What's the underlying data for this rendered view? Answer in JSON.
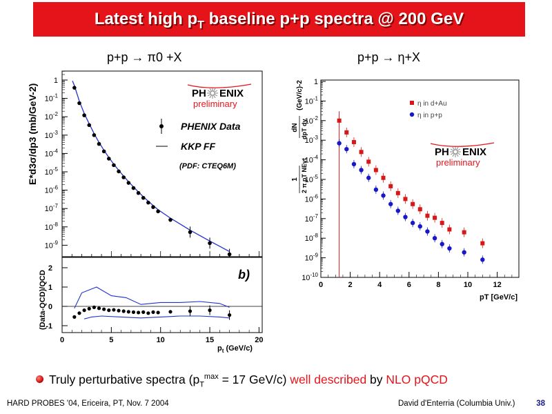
{
  "title": {
    "text": "Latest high p",
    "sub": "T",
    "rest": " baseline p+p spectra @ 200 GeV"
  },
  "panels": {
    "left_title": "p+p → π0 +X",
    "right_title": "p+p → η+X"
  },
  "logo": {
    "text_left": "PH",
    "text_right": "ENIX",
    "subtext": "preliminary"
  },
  "bullet": {
    "part1": "Truly perturbative spectra (p",
    "sub": "T",
    "sup": "max",
    "part2": " = 17 GeV/c)",
    "part3": " well described",
    "part4": " by ",
    "part5": "NLO pQCD"
  },
  "footer": {
    "left": "HARD PROBES '04, Ericeira, PT, Nov. 7 2004",
    "right": "David d'Enterria (Columbia Univ.)",
    "page": "38"
  },
  "colors": {
    "accent": "#e5141b",
    "theory": "#1f2fd0",
    "data": "#000000",
    "eta_dau": "#d81818",
    "eta_pp": "#1818c8"
  },
  "chart_data": [
    {
      "type": "scatter",
      "title": "p+p → π0 +X",
      "ylabel": "E*d3σ/dp3 (mb/GeV-2)",
      "yscale": "log",
      "ylim": [
        3e-10,
        3
      ],
      "xlim": [
        0,
        20
      ],
      "y_tick_labels": [
        "1",
        "10-1",
        "10-2",
        "10-3",
        "10-4",
        "10-5",
        "10-6",
        "10-7",
        "10-8",
        "10-9"
      ],
      "legend": {
        "data": "PHENIX Data",
        "theory": "KKP FF",
        "note": "(PDF: CTEQ6M)"
      },
      "series": [
        {
          "name": "PHENIX Data",
          "x": [
            1.25,
            1.75,
            2.25,
            2.75,
            3.25,
            3.75,
            4.25,
            4.75,
            5.25,
            5.75,
            6.25,
            6.75,
            7.25,
            7.75,
            8.25,
            8.75,
            9.25,
            9.75,
            11,
            13,
            15,
            17
          ],
          "y": [
            0.38,
            0.055,
            0.012,
            0.0035,
            0.001,
            0.00033,
            0.00013,
            5.2e-05,
            2.3e-05,
            1.05e-05,
            5e-06,
            2.5e-06,
            1.3e-06,
            7e-07,
            3.8e-07,
            2.1e-07,
            1.2e-07,
            7e-08,
            2.4e-08,
            5.2e-09,
            1.3e-09,
            3.2e-10
          ]
        },
        {
          "name": "KKP FF",
          "x": [
            1.25,
            1.75,
            2.25,
            2.75,
            3.25,
            3.75,
            4.25,
            4.75,
            5.25,
            5.75,
            6.25,
            6.75,
            7.25,
            7.75,
            8.25,
            8.75,
            9.25,
            9.75,
            11,
            13,
            15,
            17
          ],
          "y": [
            0.5,
            0.07,
            0.015,
            0.0042,
            0.0012,
            0.0004,
            0.00015,
            6e-05,
            2.6e-05,
            1.2e-05,
            5.8e-06,
            2.9e-06,
            1.5e-06,
            8e-07,
            4.4e-07,
            2.5e-07,
            1.45e-07,
            8.6e-08,
            3e-08,
            6.6e-09,
            1.7e-09,
            4.5e-10
          ]
        }
      ]
    },
    {
      "type": "line",
      "label": "b)",
      "ylabel": "(Data-QCD)/QCD",
      "xlabel": "pT (GeV/c)",
      "xlim": [
        0,
        20
      ],
      "ylim": [
        -1.3,
        2.4
      ],
      "x_tick_labels": [
        "0",
        "5",
        "10",
        "15",
        "20"
      ],
      "y_tick_labels": [
        "2",
        "1",
        "0",
        "-1"
      ],
      "series": [
        {
          "name": "points",
          "x": [
            1.25,
            1.75,
            2.25,
            2.75,
            3.25,
            3.75,
            4.25,
            4.75,
            5.25,
            5.75,
            6.25,
            6.75,
            7.25,
            7.75,
            8.25,
            8.75,
            9.25,
            9.75,
            11,
            13,
            15,
            17
          ],
          "y": [
            -0.55,
            -0.35,
            -0.2,
            -0.12,
            -0.05,
            -0.1,
            -0.15,
            -0.2,
            -0.18,
            -0.22,
            -0.25,
            -0.28,
            -0.3,
            -0.32,
            -0.3,
            -0.35,
            -0.3,
            -0.32,
            -0.28,
            -0.25,
            -0.2,
            -0.45
          ]
        },
        {
          "name": "upper band",
          "x": [
            1.25,
            2,
            3.5,
            5,
            6.5,
            8,
            10,
            12,
            14,
            16,
            17
          ],
          "y": [
            -0.1,
            0.7,
            1.0,
            0.55,
            0.45,
            0.1,
            0.2,
            0.2,
            0.25,
            0.15,
            -0.05
          ]
        },
        {
          "name": "lower band",
          "x": [
            2.25,
            3,
            4,
            6,
            8,
            10,
            12,
            14,
            16,
            17
          ],
          "y": [
            -0.65,
            -0.55,
            -0.5,
            -0.55,
            -0.6,
            -0.55,
            -0.5,
            -0.5,
            -0.55,
            -0.6
          ]
        }
      ]
    },
    {
      "type": "scatter",
      "title": "p+p → η+X",
      "xlabel": "pT [GeV/c]",
      "ylabel": "1/(2π pT Nevt) dN/(dpT dy) (GeV/c)-2",
      "yscale": "log",
      "xlim": [
        0,
        13
      ],
      "ylim": [
        1e-10,
        1
      ],
      "x_tick_labels": [
        "0",
        "2",
        "4",
        "6",
        "8",
        "10",
        "12"
      ],
      "y_tick_labels": [
        "1",
        "10-1",
        "10-2",
        "10-3",
        "10-4",
        "10-5",
        "10-6",
        "10-7",
        "10-8",
        "10-9",
        "10-10"
      ],
      "ylabel_parts": {
        "numerator": "dN",
        "denominator": "dpT dy",
        "prefactor_top": "1",
        "prefactor_bottom": "2 π pT NEvt",
        "units": "(GeV/c)-2"
      },
      "series": [
        {
          "name": "η in d+Au",
          "x": [
            1.25,
            1.75,
            2.25,
            2.75,
            3.25,
            3.75,
            4.25,
            4.75,
            5.25,
            5.75,
            6.25,
            6.75,
            7.25,
            7.75,
            8.25,
            8.75,
            9.75,
            11
          ],
          "y": [
            0.01,
            0.0025,
            0.0008,
            0.00025,
            8e-05,
            3e-05,
            1.2e-05,
            4.5e-06,
            2e-06,
            1e-06,
            5.5e-07,
            3e-07,
            1.4e-07,
            1.1e-07,
            6e-08,
            2.8e-08,
            2e-08,
            5.5e-09
          ]
        },
        {
          "name": "η in p+p",
          "x": [
            1.25,
            1.75,
            2.25,
            2.75,
            3.25,
            3.75,
            4.25,
            4.75,
            5.25,
            5.75,
            6.25,
            6.75,
            7.25,
            7.75,
            8.25,
            8.75,
            9.75,
            11
          ],
          "y": [
            0.0007,
            0.00035,
            6e-05,
            3e-05,
            1.2e-05,
            3e-06,
            1.5e-06,
            5.5e-07,
            2.5e-07,
            1.2e-07,
            6e-08,
            4e-08,
            2.2e-08,
            1e-08,
            5e-09,
            3e-09,
            1.9e-09,
            8e-10
          ]
        }
      ]
    }
  ]
}
